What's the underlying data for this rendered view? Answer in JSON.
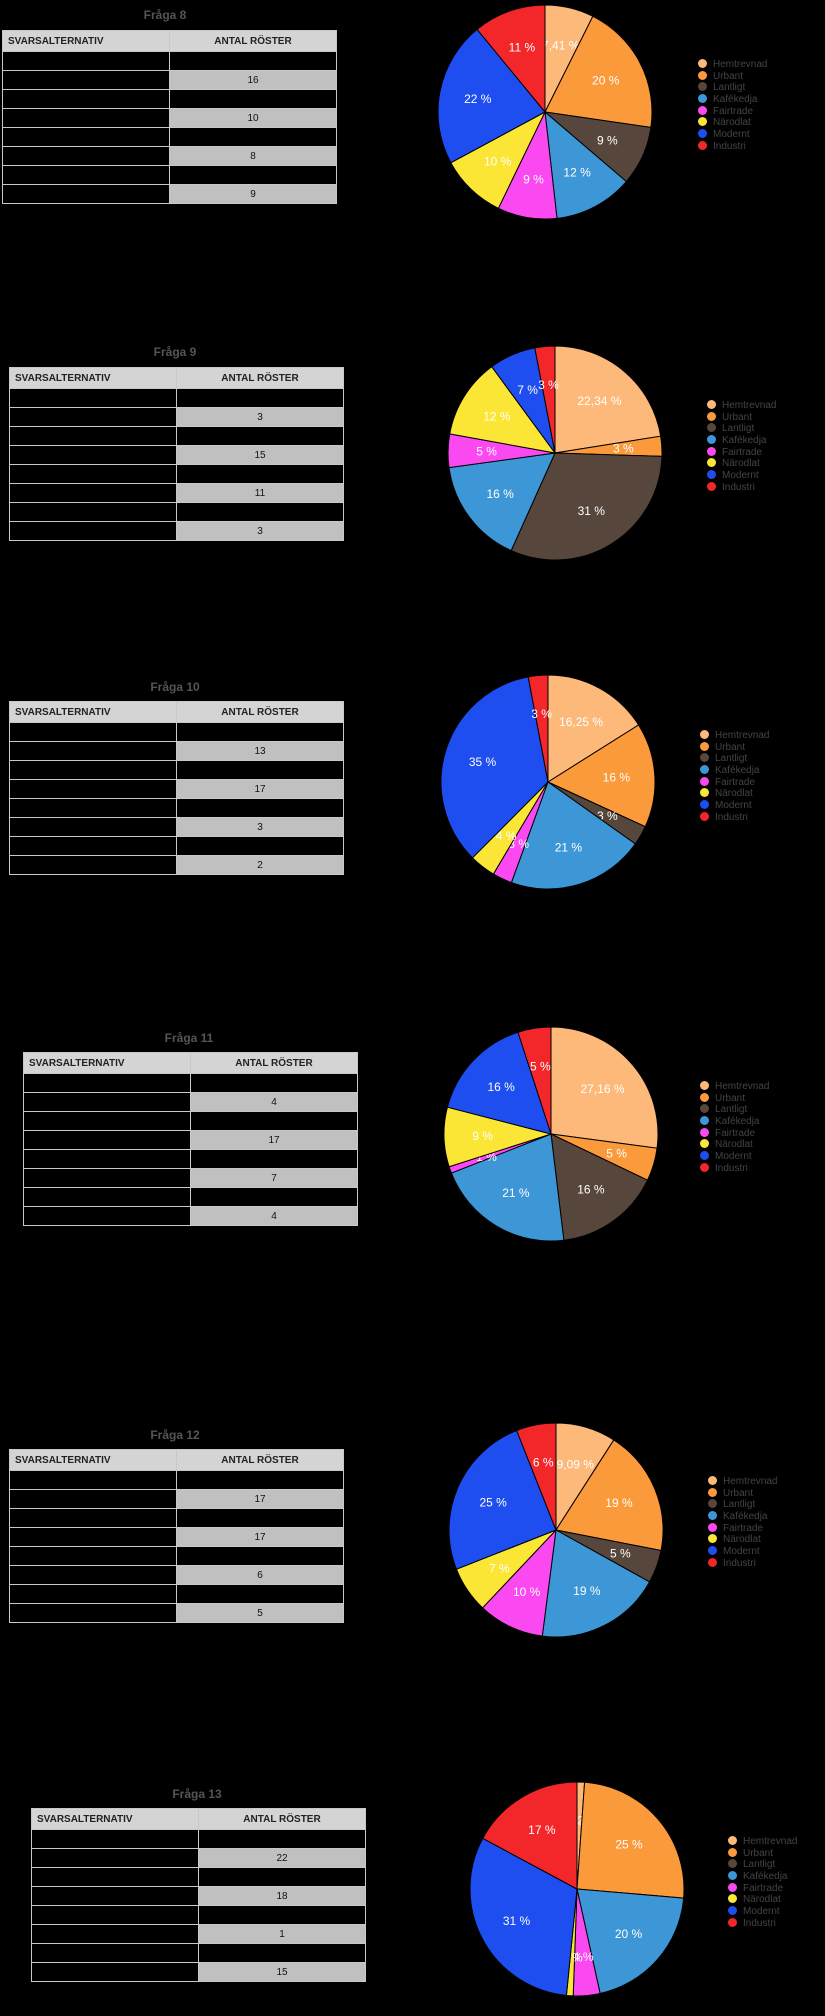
{
  "table_header": {
    "col1": "SVARSALTERNATIV",
    "col2": "ANTAL RÖSTER"
  },
  "legend_labels": [
    "Hemtrevnad",
    "Urbant",
    "Lantligt",
    "Kafékedja",
    "Fairtrade",
    "Närodlat",
    "Modernt",
    "Industri"
  ],
  "colors": [
    "#fdb97a",
    "#fb9a3a",
    "#56463c",
    "#3d96d5",
    "#fb49f2",
    "#fbe636",
    "#1e4df0",
    "#f3262a"
  ],
  "chart_data": [
    {
      "type": "pie",
      "title": "Fråga 8",
      "table_rows": [
        "",
        "16",
        "",
        "10",
        "",
        "8",
        "",
        "9"
      ],
      "labels": [
        "Hemtrevnad",
        "Urbant",
        "Lantligt",
        "Kafékedja",
        "Fairtrade",
        "Närodlat",
        "Modernt",
        "Industri"
      ],
      "values": [
        7.41,
        20,
        9,
        12,
        9,
        10,
        22,
        11
      ],
      "value_labels": [
        "7,41 %",
        "20 %",
        "9 %",
        "12 %",
        "9 %",
        "10 %",
        "22 %",
        "11 %"
      ]
    },
    {
      "type": "pie",
      "title": "Fråga 9",
      "table_rows": [
        "",
        "3",
        "",
        "15",
        "",
        "11",
        "",
        "3"
      ],
      "labels": [
        "Hemtrevnad",
        "Urbant",
        "Lantligt",
        "Kafékedja",
        "Fairtrade",
        "Närodlat",
        "Modernt",
        "Industri"
      ],
      "values": [
        22.34,
        3,
        31,
        16,
        5,
        12,
        7,
        3
      ],
      "value_labels": [
        "22,34 %",
        "3 %",
        "31 %",
        "16 %",
        "5 %",
        "12 %",
        "7 %",
        "3 %"
      ]
    },
    {
      "type": "pie",
      "title": "Fråga 10",
      "table_rows": [
        "",
        "13",
        "",
        "17",
        "",
        "3",
        "",
        "2"
      ],
      "labels": [
        "Hemtrevnad",
        "Urbant",
        "Lantligt",
        "Kafékedja",
        "Fairtrade",
        "Närodlat",
        "Modernt",
        "Industri"
      ],
      "values": [
        16.25,
        16,
        3,
        21,
        3,
        4,
        35,
        3
      ],
      "value_labels": [
        "16,25 %",
        "16 %",
        "3 %",
        "21 %",
        "3 %",
        "4 %",
        "35 %",
        "3 %"
      ]
    },
    {
      "type": "pie",
      "title": "Fråga 11",
      "table_rows": [
        "",
        "4",
        "",
        "17",
        "",
        "7",
        "",
        "4"
      ],
      "labels": [
        "Hemtrevnad",
        "Urbant",
        "Lantligt",
        "Kafékedja",
        "Fairtrade",
        "Närodlat",
        "Modernt",
        "Industri"
      ],
      "values": [
        27.16,
        5,
        16,
        21,
        1,
        9,
        16,
        5
      ],
      "value_labels": [
        "27,16 %",
        "5 %",
        "16 %",
        "21 %",
        "1 %",
        "9 %",
        "16 %",
        "5 %"
      ]
    },
    {
      "type": "pie",
      "title": "Fråga 12",
      "table_rows": [
        "",
        "17",
        "",
        "17",
        "",
        "6",
        "",
        "5"
      ],
      "labels": [
        "Hemtrevnad",
        "Urbant",
        "Lantligt",
        "Kafékedja",
        "Fairtrade",
        "Närodlat",
        "Modernt",
        "Industri"
      ],
      "values": [
        9.09,
        19,
        5,
        19,
        10,
        7,
        25,
        6
      ],
      "value_labels": [
        "9,09 %",
        "19 %",
        "5 %",
        "19 %",
        "10 %",
        "7 %",
        "25 %",
        "6 %"
      ]
    },
    {
      "type": "pie",
      "title": "Fråga 13",
      "table_rows": [
        "",
        "22",
        "",
        "18",
        "",
        "1",
        "",
        "15"
      ],
      "labels": [
        "Hemtrevnad",
        "Urbant",
        "Lantligt",
        "Kafékedja",
        "Fairtrade",
        "Närodlat",
        "Modernt",
        "Industri"
      ],
      "values": [
        1.12,
        25,
        0,
        20,
        4,
        1,
        31,
        17
      ],
      "value_labels": [
        "1,12 %",
        "25 %",
        "",
        "20 %",
        "4 %",
        "1 %",
        "31 %",
        "17 %"
      ]
    }
  ]
}
